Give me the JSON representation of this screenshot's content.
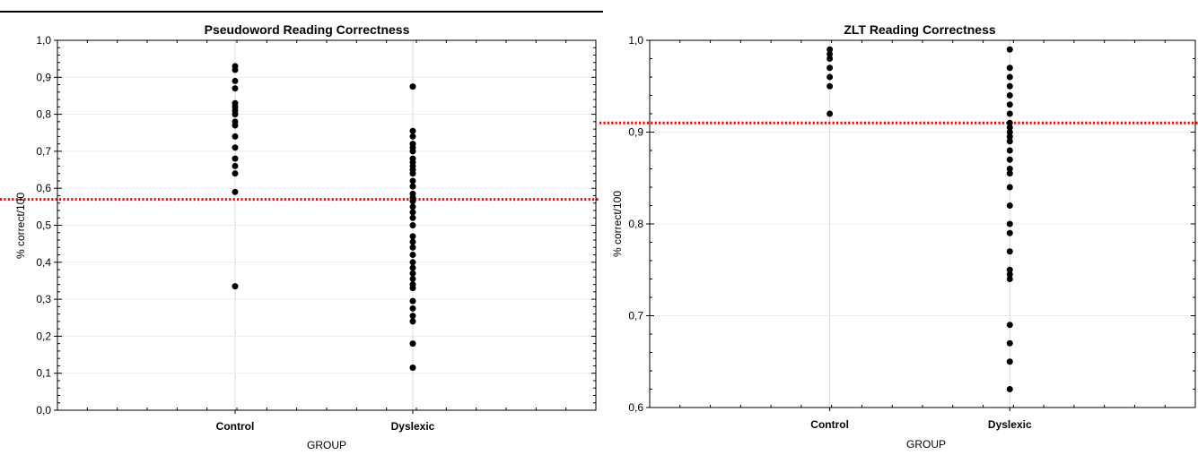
{
  "chart_data": [
    {
      "type": "scatter",
      "title": "Pseudoword Reading Correctness",
      "xlabel": "GROUP",
      "ylabel": "% correct/100",
      "categories": [
        "Control",
        "Dyslexic"
      ],
      "ylim": [
        0.0,
        1.0
      ],
      "yticks": [
        "0,0",
        "0,1",
        "0,2",
        "0,3",
        "0,4",
        "0,5",
        "0,6",
        "0,7",
        "0,8",
        "0,9",
        "1,0"
      ],
      "ytick_values": [
        0.0,
        0.1,
        0.2,
        0.3,
        0.4,
        0.5,
        0.6,
        0.7,
        0.8,
        0.9,
        1.0
      ],
      "reference_line": {
        "y": 0.57,
        "color": "#ff0000",
        "style": "dotted"
      },
      "grid": true,
      "series": [
        {
          "category": "Control",
          "values": [
            0.93,
            0.92,
            0.89,
            0.87,
            0.83,
            0.82,
            0.81,
            0.8,
            0.78,
            0.77,
            0.74,
            0.71,
            0.68,
            0.66,
            0.64,
            0.59,
            0.335
          ]
        },
        {
          "category": "Dyslexic",
          "values": [
            0.875,
            0.755,
            0.74,
            0.72,
            0.71,
            0.7,
            0.68,
            0.67,
            0.66,
            0.65,
            0.64,
            0.62,
            0.605,
            0.585,
            0.575,
            0.565,
            0.55,
            0.535,
            0.52,
            0.5,
            0.47,
            0.455,
            0.44,
            0.42,
            0.4,
            0.385,
            0.37,
            0.355,
            0.34,
            0.33,
            0.295,
            0.275,
            0.255,
            0.24,
            0.18,
            0.115
          ]
        }
      ],
      "point_color": "#000000"
    },
    {
      "type": "scatter",
      "title": "ZLT Reading Correctness",
      "xlabel": "GROUP",
      "ylabel": "% correct/100",
      "categories": [
        "Control",
        "Dyslexic"
      ],
      "ylim": [
        0.6,
        1.0
      ],
      "yticks": [
        "0,6",
        "0,7",
        "0,8",
        "0,9",
        "1,0"
      ],
      "ytick_values": [
        0.6,
        0.7,
        0.8,
        0.9,
        1.0
      ],
      "reference_line": {
        "y": 0.91,
        "color": "#ff0000",
        "style": "dotted"
      },
      "grid": true,
      "series": [
        {
          "category": "Control",
          "values": [
            0.99,
            0.985,
            0.98,
            0.97,
            0.96,
            0.95,
            0.92
          ]
        },
        {
          "category": "Dyslexic",
          "values": [
            0.99,
            0.97,
            0.96,
            0.95,
            0.94,
            0.93,
            0.92,
            0.91,
            0.905,
            0.9,
            0.895,
            0.89,
            0.88,
            0.87,
            0.86,
            0.855,
            0.84,
            0.82,
            0.8,
            0.79,
            0.77,
            0.75,
            0.745,
            0.74,
            0.69,
            0.67,
            0.65,
            0.62
          ]
        }
      ],
      "point_color": "#000000"
    }
  ]
}
